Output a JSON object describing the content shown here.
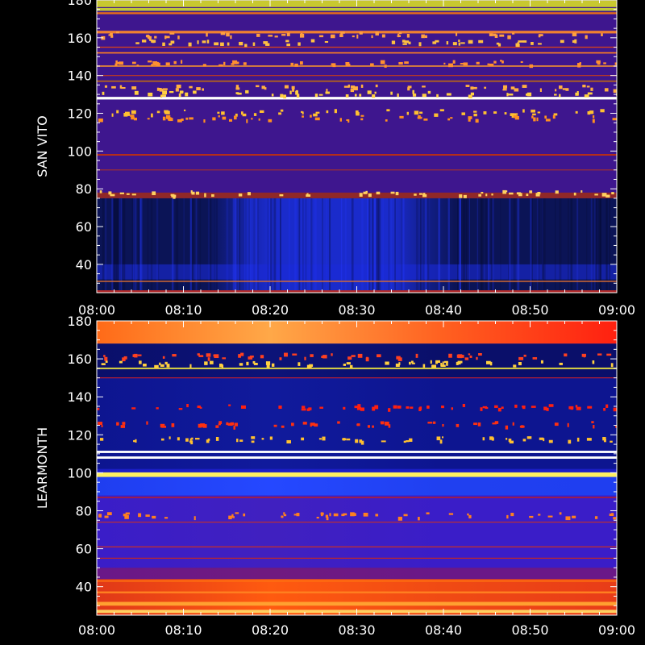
{
  "chart_data": [
    {
      "type": "heatmap",
      "ylabel": "SAN VITO",
      "ylim": [
        25,
        180
      ],
      "yticks": [
        40,
        60,
        80,
        100,
        120,
        140,
        160,
        180
      ],
      "x_range": [
        "08:00",
        "09:00"
      ],
      "xticks": [
        "08:00",
        "08:10",
        "08:20",
        "08:30",
        "08:40",
        "08:50",
        "09:00"
      ],
      "background_color": "#3e168e",
      "dark_band": {
        "y_range": [
          25,
          75
        ],
        "color": "#0b1456",
        "bright_window_x": [
          "08:15",
          "08:39"
        ],
        "bright_color": "#1d2fe0"
      },
      "bottom_edge_color": "#b02a2a",
      "strips": [
        {
          "y": 178,
          "height": 3.5,
          "color": "#c8c830"
        },
        {
          "y": 175,
          "height": 1.5,
          "color": "#c0c838"
        },
        {
          "y": 173,
          "height": 1.0,
          "color": "#e86e18"
        },
        {
          "y": 163,
          "height": 1.4,
          "color": "#f08030"
        },
        {
          "y": 155,
          "height": 0.6,
          "color": "#d04020"
        },
        {
          "y": 152,
          "height": 0.7,
          "color": "#ff8020"
        },
        {
          "y": 145,
          "height": 0.7,
          "color": "#f09030"
        },
        {
          "y": 140,
          "height": 0.5,
          "color": "#c03a20"
        },
        {
          "y": 137,
          "height": 0.8,
          "color": "#b06020"
        },
        {
          "y": 128,
          "height": 1.4,
          "color": "#ffffff"
        },
        {
          "y": 98,
          "height": 0.8,
          "color": "#c03010"
        },
        {
          "y": 90,
          "height": 0.5,
          "color": "#a03030"
        },
        {
          "y": 76.5,
          "height": 3.0,
          "color": "#902828"
        },
        {
          "y": 31,
          "height": 0.6,
          "color": "#e07030"
        }
      ],
      "speckles": [
        {
          "y": 162,
          "color": "#ffa040"
        },
        {
          "y": 158,
          "color": "#ffc040"
        },
        {
          "y": 147,
          "color": "#ff9030"
        },
        {
          "y": 134,
          "color": "#ffb040"
        },
        {
          "y": 131,
          "color": "#ffd040"
        },
        {
          "y": 121,
          "color": "#ffc030"
        },
        {
          "y": 118,
          "color": "#ff9020"
        },
        {
          "y": 78,
          "color": "#ffd060"
        }
      ]
    },
    {
      "type": "heatmap",
      "ylabel": "LEARMONTH",
      "ylim": [
        25,
        180
      ],
      "yticks": [
        40,
        60,
        80,
        100,
        120,
        140,
        160,
        180
      ],
      "x_range": [
        "08:00",
        "09:00"
      ],
      "xticks": [
        "08:00",
        "08:10",
        "08:20",
        "08:30",
        "08:40",
        "08:50",
        "09:00"
      ],
      "background_color": "#1b1ec6",
      "gradient_bands": [
        {
          "y_range": [
            168,
            180
          ],
          "colors": [
            "#ff6a18",
            "#ffa848",
            "#ff6020",
            "#ff2010"
          ]
        },
        {
          "y_range": [
            150,
            168
          ],
          "colors": [
            "#0a0f6a",
            "#0c1378",
            "#0a0f6a",
            "#0a0f6a"
          ]
        },
        {
          "y_range": [
            102,
            150
          ],
          "colors": [
            "#0d1590",
            "#101a9c",
            "#0d1590",
            "#0d1590"
          ]
        },
        {
          "y_range": [
            88,
            98
          ],
          "colors": [
            "#1f3ef0",
            "#2548ff",
            "#2040f0",
            "#1f3ef0"
          ]
        },
        {
          "y_range": [
            50,
            88
          ],
          "colors": [
            "#3a1dc8",
            "#4020c0",
            "#3a1dc8",
            "#3a1dc8"
          ]
        },
        {
          "y_range": [
            44,
            50
          ],
          "colors": [
            "#6a1888",
            "#701a80",
            "#6a1888",
            "#6a1888"
          ]
        },
        {
          "y_range": [
            25,
            44
          ],
          "colors": [
            "#e03818",
            "#ff5a10",
            "#f04a14",
            "#e83c18"
          ]
        }
      ],
      "strips": [
        {
          "y": 155,
          "height": 0.8,
          "color": "#e8e040"
        },
        {
          "y": 150,
          "height": 0.5,
          "color": "#c02030"
        },
        {
          "y": 111,
          "height": 1.2,
          "color": "#ffffff"
        },
        {
          "y": 108,
          "height": 1.2,
          "color": "#ffffff"
        },
        {
          "y": 99,
          "height": 2.4,
          "color": "#fff060"
        },
        {
          "y": 87,
          "height": 0.6,
          "color": "#c02020"
        },
        {
          "y": 74,
          "height": 0.5,
          "color": "#c03030"
        },
        {
          "y": 61,
          "height": 0.5,
          "color": "#d03020"
        },
        {
          "y": 55,
          "height": 0.5,
          "color": "#c02828"
        },
        {
          "y": 43,
          "height": 0.8,
          "color": "#ff7010"
        },
        {
          "y": 37,
          "height": 1.0,
          "color": "#ff8020"
        },
        {
          "y": 31,
          "height": 2.0,
          "color": "#ffa030"
        },
        {
          "y": 27,
          "height": 1.6,
          "color": "#ffd060"
        }
      ],
      "speckles": [
        {
          "y": 162,
          "color": "#ff4020"
        },
        {
          "y": 158,
          "color": "#ffd040"
        },
        {
          "y": 135,
          "color": "#ff2010"
        },
        {
          "y": 126,
          "color": "#ff3010"
        },
        {
          "y": 118,
          "color": "#ffc030"
        },
        {
          "y": 78,
          "color": "#ff8020"
        }
      ]
    }
  ]
}
